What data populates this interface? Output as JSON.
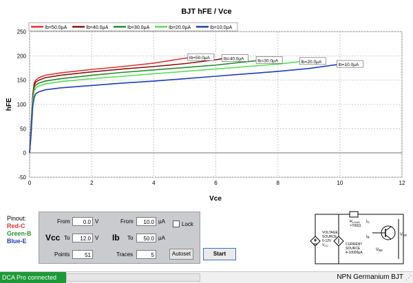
{
  "window_title": "BJT hFE / Vce",
  "chart_data": {
    "type": "line",
    "title": "BJT hFE / Vce",
    "xlabel": "Vce",
    "ylabel": "hFE",
    "xlim": [
      0,
      12
    ],
    "ylim": [
      -50,
      250
    ],
    "xticks": [
      "0",
      "2",
      "4",
      "6",
      "8",
      "10",
      "12"
    ],
    "yticks": [
      "-50",
      "0",
      "50",
      "100",
      "150",
      "200",
      "250"
    ],
    "grid": true,
    "legend_position": "top-left",
    "series": [
      {
        "name": "Ib=50.0µA",
        "color": "#e03030",
        "end_label": "Ib=50.0µA",
        "x": [
          0,
          0.05,
          0.1,
          0.15,
          0.2,
          0.3,
          0.5,
          1,
          2,
          3,
          4,
          5,
          5.1
        ],
        "y": [
          0,
          60,
          120,
          145,
          150,
          155,
          160,
          165,
          172,
          178,
          185,
          195,
          196
        ]
      },
      {
        "name": "Ib=40.0µA",
        "color": "#8b1010",
        "end_label": "Ib=40.0µA",
        "x": [
          0,
          0.05,
          0.1,
          0.15,
          0.2,
          0.3,
          0.5,
          1,
          2,
          3,
          4,
          5,
          6,
          6.2
        ],
        "y": [
          0,
          55,
          115,
          140,
          146,
          150,
          155,
          160,
          167,
          173,
          178,
          184,
          192,
          194
        ]
      },
      {
        "name": "Ib=30.0µA",
        "color": "#1f8a2a",
        "end_label": "Ib=30.0µA",
        "x": [
          0,
          0.05,
          0.1,
          0.15,
          0.2,
          0.3,
          0.5,
          1,
          2,
          3,
          4,
          5,
          6,
          7,
          7.3
        ],
        "y": [
          0,
          50,
          110,
          135,
          140,
          144,
          148,
          153,
          160,
          166,
          171,
          176,
          181,
          188,
          190
        ]
      },
      {
        "name": "Ib=20.0µA",
        "color": "#55dd55",
        "end_label": "Ib=20.0µA",
        "x": [
          0,
          0.05,
          0.1,
          0.15,
          0.2,
          0.3,
          0.5,
          1,
          2,
          3,
          4,
          5,
          6,
          7,
          8,
          8.7
        ],
        "y": [
          0,
          45,
          105,
          128,
          134,
          138,
          142,
          147,
          153,
          158,
          163,
          168,
          173,
          178,
          183,
          188
        ]
      },
      {
        "name": "Ib=10.0µA",
        "color": "#1a3db8",
        "end_label": "Ib=10.0µA",
        "x": [
          0,
          0.05,
          0.1,
          0.15,
          0.2,
          0.3,
          0.5,
          1,
          2,
          3,
          4,
          5,
          6,
          7,
          8,
          9,
          9.9
        ],
        "y": [
          0,
          40,
          95,
          115,
          122,
          126,
          130,
          134,
          139,
          144,
          148,
          153,
          158,
          163,
          168,
          174,
          182
        ]
      }
    ]
  },
  "pinout": {
    "title": "Pinout:",
    "red": "Red-C",
    "green": "Green-B",
    "blue": "Blue-E",
    "red_color": "#e03030",
    "green_color": "#1f9a2a",
    "blue_color": "#1a3db8"
  },
  "controls": {
    "vcc_label": "Vcc",
    "ib_label": "Ib",
    "from_label": "From",
    "to_label": "To",
    "points_label": "Points",
    "traces_label": "Traces",
    "vcc_from": "0.0",
    "vcc_to": "12.0",
    "vcc_unit": "V",
    "points": "51",
    "ib_from": "10.0",
    "ib_to": "50.0",
    "ib_unit": "µA",
    "traces": "5",
    "lock_label": "Lock",
    "lock_checked": false,
    "autoset_label": "Autoset",
    "start_label": "Start"
  },
  "schematic": {
    "rload": "R",
    "rload_sub": "LOAD",
    "rload_value": "≈700Ω",
    "voltage_source_lines": [
      "VOLTAGE",
      "SOURCE",
      "0-12V",
      "V"
    ],
    "vcc_sub": "CC",
    "current_source_lines": [
      "CURRENT",
      "SOURCE",
      "4-10000µA"
    ],
    "ic": "I",
    "ic_sub": "C",
    "ib": "I",
    "ib_sub": "B",
    "vbe": "V",
    "vbe_sub": "BE",
    "vce": "V",
    "vce_sub": "CE"
  },
  "status": {
    "connection": "DCA Pro connected",
    "device": "NPN Germanium BJT"
  }
}
